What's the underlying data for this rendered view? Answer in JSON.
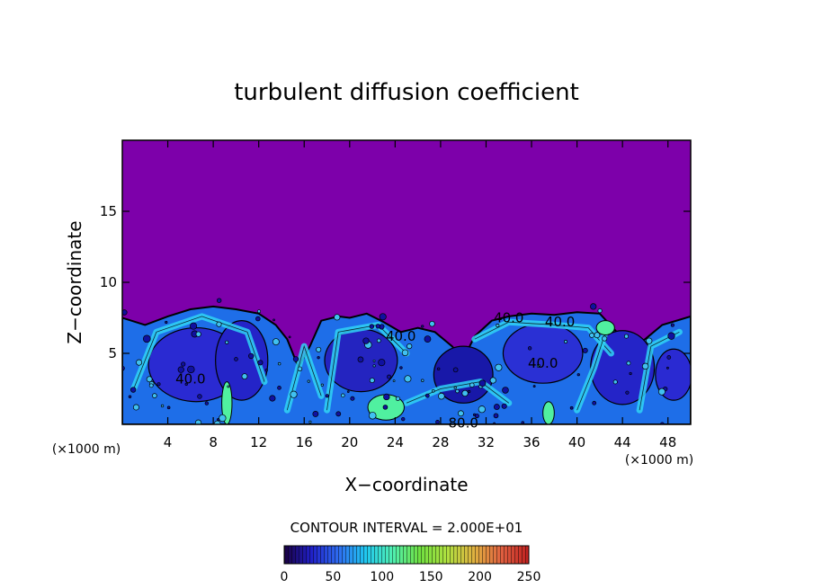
{
  "chart_data": {
    "type": "heatmap",
    "title": "turbulent diffusion coefficient",
    "xlabel": "X−coordinate",
    "ylabel": "Z−coordinate",
    "x_unit": "(×1000 m)",
    "y_unit": "(×1000 m)",
    "xlim": [
      0,
      50
    ],
    "ylim": [
      0,
      20
    ],
    "x_ticks": [
      4,
      8,
      12,
      16,
      20,
      24,
      28,
      32,
      36,
      40,
      44,
      48
    ],
    "y_ticks": [
      5,
      10,
      15
    ],
    "contour_interval_text": "CONTOUR INTERVAL = 2.000E+01",
    "contour_labels": [
      {
        "text": "40.0",
        "x": 6.0,
        "z": 3.2
      },
      {
        "text": "40.0",
        "x": 24.5,
        "z": 6.2
      },
      {
        "text": "40.0",
        "x": 34.0,
        "z": 7.5
      },
      {
        "text": "40.0",
        "x": 38.5,
        "z": 7.2
      },
      {
        "text": "40.0",
        "x": 37.0,
        "z": 4.3
      },
      {
        "text": "80.0",
        "x": 30.0,
        "z": 0.1
      }
    ],
    "colorbar": {
      "range": [
        0,
        250
      ],
      "ticks": [
        0,
        50,
        100,
        150,
        200,
        250
      ],
      "colormap": [
        "#1a0040",
        "#2020c8",
        "#2e6cf0",
        "#20c8f0",
        "#50f0b0",
        "#70e040",
        "#b0e040",
        "#e0b040",
        "#e06040",
        "#c02020"
      ]
    },
    "background_color": "#7d00aa",
    "field_top_profile": [
      {
        "x": 0,
        "z": 7.5
      },
      {
        "x": 2,
        "z": 7.0
      },
      {
        "x": 4,
        "z": 7.6
      },
      {
        "x": 6,
        "z": 8.1
      },
      {
        "x": 8,
        "z": 8.3
      },
      {
        "x": 10,
        "z": 8.1
      },
      {
        "x": 12,
        "z": 7.8
      },
      {
        "x": 13.5,
        "z": 7.0
      },
      {
        "x": 14.5,
        "z": 6.0
      },
      {
        "x": 15.5,
        "z": 4.0
      },
      {
        "x": 16.5,
        "z": 5.5
      },
      {
        "x": 17.5,
        "z": 7.3
      },
      {
        "x": 19,
        "z": 7.6
      },
      {
        "x": 20,
        "z": 7.5
      },
      {
        "x": 21.5,
        "z": 7.8
      },
      {
        "x": 23,
        "z": 7.2
      },
      {
        "x": 24.5,
        "z": 6.5
      },
      {
        "x": 26,
        "z": 6.8
      },
      {
        "x": 27.5,
        "z": 6.5
      },
      {
        "x": 29,
        "z": 5.5
      },
      {
        "x": 30,
        "z": 4.6
      },
      {
        "x": 31,
        "z": 6.2
      },
      {
        "x": 32.5,
        "z": 7.3
      },
      {
        "x": 34,
        "z": 7.6
      },
      {
        "x": 36,
        "z": 7.8
      },
      {
        "x": 38,
        "z": 7.7
      },
      {
        "x": 40,
        "z": 7.9
      },
      {
        "x": 42,
        "z": 7.8
      },
      {
        "x": 43.5,
        "z": 6.5
      },
      {
        "x": 45,
        "z": 5.5
      },
      {
        "x": 46,
        "z": 6.0
      },
      {
        "x": 47.5,
        "z": 7.0
      },
      {
        "x": 50,
        "z": 7.6
      }
    ]
  }
}
